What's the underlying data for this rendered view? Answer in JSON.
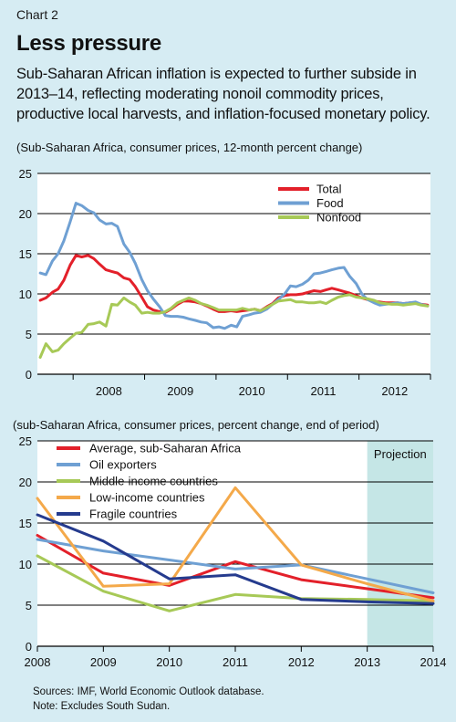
{
  "header": {
    "label": "Chart 2",
    "title": "Less pressure",
    "subtitle": "Sub-Saharan African inflation is expected to further subside in 2013–14, reflecting moderating nonoil commodity prices, productive local harvests, and inflation-focused monetary policy."
  },
  "chart_data": [
    {
      "type": "line",
      "note": "(Sub-Saharan Africa, consumer prices, 12-month percent change)",
      "y_ticks": [
        "0",
        "5",
        "10",
        "15",
        "20",
        "25"
      ],
      "ylim": [
        0,
        25
      ],
      "x_ticks": [
        "2008",
        "2009",
        "2010",
        "2011",
        "2012"
      ],
      "xlim": [
        2007.5,
        2013
      ],
      "grid": "horizontal",
      "legend_position": "top-right",
      "series": [
        {
          "name": "Total",
          "color": "#e3202a",
          "x": [
            2007.54,
            2007.62,
            2007.71,
            2007.79,
            2007.87,
            2007.96,
            2008.04,
            2008.12,
            2008.21,
            2008.29,
            2008.37,
            2008.46,
            2008.54,
            2008.62,
            2008.71,
            2008.79,
            2008.87,
            2008.96,
            2009.04,
            2009.12,
            2009.21,
            2009.29,
            2009.37,
            2009.46,
            2009.54,
            2009.62,
            2009.71,
            2009.79,
            2009.87,
            2009.96,
            2010.04,
            2010.12,
            2010.21,
            2010.29,
            2010.37,
            2010.46,
            2010.54,
            2010.62,
            2010.71,
            2010.79,
            2010.87,
            2010.96,
            2011.04,
            2011.12,
            2011.21,
            2011.29,
            2011.37,
            2011.46,
            2011.54,
            2011.62,
            2011.71,
            2011.79,
            2011.87,
            2011.96,
            2012.04,
            2012.12,
            2012.21,
            2012.29,
            2012.37,
            2012.46,
            2012.54,
            2012.62,
            2012.71,
            2012.79,
            2012.87,
            2012.96
          ],
          "y": [
            9.2,
            9.5,
            10.2,
            10.6,
            11.7,
            13.6,
            14.8,
            14.6,
            14.8,
            14.4,
            13.7,
            13.0,
            12.8,
            12.6,
            12.0,
            11.8,
            10.9,
            9.6,
            8.4,
            8.0,
            7.8,
            7.7,
            8.1,
            8.7,
            9.1,
            9.1,
            9.0,
            8.8,
            8.5,
            8.1,
            7.8,
            7.8,
            7.9,
            7.8,
            7.9,
            8.0,
            8.1,
            7.9,
            8.4,
            8.8,
            9.5,
            9.8,
            9.9,
            9.9,
            10.0,
            10.2,
            10.4,
            10.3,
            10.5,
            10.7,
            10.5,
            10.3,
            10.1,
            9.8,
            9.5,
            9.3,
            9.1,
            9.0,
            8.9,
            8.9,
            8.9,
            8.8,
            8.9,
            8.9,
            8.7,
            8.6
          ]
        },
        {
          "name": "Food",
          "color": "#6fa0d3",
          "x": [
            2007.54,
            2007.62,
            2007.71,
            2007.79,
            2007.87,
            2007.96,
            2008.04,
            2008.12,
            2008.21,
            2008.29,
            2008.37,
            2008.46,
            2008.54,
            2008.62,
            2008.71,
            2008.79,
            2008.87,
            2008.96,
            2009.04,
            2009.12,
            2009.21,
            2009.29,
            2009.37,
            2009.46,
            2009.54,
            2009.62,
            2009.71,
            2009.79,
            2009.87,
            2009.96,
            2010.04,
            2010.12,
            2010.21,
            2010.29,
            2010.37,
            2010.46,
            2010.54,
            2010.62,
            2010.71,
            2010.79,
            2010.87,
            2010.96,
            2011.04,
            2011.12,
            2011.21,
            2011.29,
            2011.37,
            2011.46,
            2011.54,
            2011.62,
            2011.71,
            2011.79,
            2011.87,
            2011.96,
            2012.04,
            2012.12,
            2012.21,
            2012.29,
            2012.37,
            2012.46,
            2012.54,
            2012.62,
            2012.71,
            2012.79,
            2012.87,
            2012.96
          ],
          "y": [
            12.6,
            12.4,
            14.1,
            15.0,
            16.6,
            19.0,
            21.3,
            21.0,
            20.4,
            20.1,
            19.2,
            18.7,
            18.8,
            18.4,
            16.2,
            15.2,
            13.8,
            11.8,
            10.4,
            9.4,
            8.4,
            7.3,
            7.2,
            7.2,
            7.1,
            6.9,
            6.7,
            6.5,
            6.4,
            5.8,
            5.9,
            5.7,
            6.1,
            5.9,
            7.2,
            7.4,
            7.6,
            7.7,
            8.1,
            8.7,
            9.3,
            10.0,
            11.0,
            10.9,
            11.2,
            11.7,
            12.5,
            12.6,
            12.8,
            13.0,
            13.2,
            13.3,
            12.2,
            11.3,
            10.0,
            9.3,
            8.9,
            8.6,
            8.7,
            8.8,
            8.9,
            8.8,
            8.9,
            9.0,
            8.7,
            8.5
          ]
        },
        {
          "name": "Nonfood",
          "color": "#a7c957",
          "x": [
            2007.54,
            2007.62,
            2007.71,
            2007.79,
            2007.87,
            2007.96,
            2008.04,
            2008.12,
            2008.21,
            2008.29,
            2008.37,
            2008.46,
            2008.54,
            2008.62,
            2008.71,
            2008.79,
            2008.87,
            2008.96,
            2009.04,
            2009.12,
            2009.21,
            2009.29,
            2009.37,
            2009.46,
            2009.54,
            2009.62,
            2009.71,
            2009.79,
            2009.87,
            2009.96,
            2010.04,
            2010.12,
            2010.21,
            2010.29,
            2010.37,
            2010.46,
            2010.54,
            2010.62,
            2010.71,
            2010.79,
            2010.87,
            2010.96,
            2011.04,
            2011.12,
            2011.21,
            2011.29,
            2011.37,
            2011.46,
            2011.54,
            2011.62,
            2011.71,
            2011.79,
            2011.87,
            2011.96,
            2012.04,
            2012.12,
            2012.21,
            2012.29,
            2012.37,
            2012.46,
            2012.54,
            2012.62,
            2012.71,
            2012.79,
            2012.87,
            2012.96
          ],
          "y": [
            2.1,
            3.8,
            2.8,
            3.0,
            3.8,
            4.5,
            5.1,
            5.2,
            6.2,
            6.3,
            6.5,
            6.0,
            8.7,
            8.6,
            9.5,
            9.0,
            8.6,
            7.6,
            7.7,
            7.6,
            7.6,
            7.8,
            8.2,
            8.9,
            9.2,
            9.5,
            9.2,
            8.8,
            8.6,
            8.3,
            8.0,
            8.0,
            8.0,
            8.0,
            8.2,
            8.0,
            8.1,
            7.9,
            8.3,
            8.7,
            9.1,
            9.2,
            9.3,
            9.0,
            9.0,
            8.9,
            8.9,
            9.0,
            8.8,
            9.2,
            9.6,
            9.8,
            9.9,
            9.6,
            9.5,
            9.4,
            9.2,
            8.9,
            8.8,
            8.7,
            8.7,
            8.6,
            8.7,
            8.8,
            8.6,
            8.5
          ]
        }
      ]
    },
    {
      "type": "line",
      "note": "(sub-Saharan Africa, consumer prices, percent change, end of period)",
      "y_ticks": [
        "0",
        "5",
        "10",
        "15",
        "20",
        "25"
      ],
      "ylim": [
        0,
        25
      ],
      "categories": [
        "2008",
        "2009",
        "2010",
        "2011",
        "2012",
        "2013",
        "2014"
      ],
      "shaded_region": {
        "label": "Projection",
        "from": "2013",
        "to": "2014",
        "color": "#c5e6e6"
      },
      "grid": "horizontal",
      "legend_position": "top-left",
      "series": [
        {
          "name": "Average, sub-Saharan Africa",
          "color": "#e3202a",
          "values": [
            13.5,
            8.9,
            7.4,
            10.3,
            8.1,
            7.0,
            5.9
          ]
        },
        {
          "name": "Oil exporters",
          "color": "#6fa0d3",
          "values": [
            13.0,
            11.6,
            10.5,
            9.4,
            9.9,
            8.2,
            6.5
          ]
        },
        {
          "name": "Middle-income countries",
          "color": "#a7c957",
          "values": [
            11.0,
            6.7,
            4.3,
            6.3,
            5.8,
            5.7,
            5.5
          ]
        },
        {
          "name": "Low-income countries",
          "color": "#f4a94a",
          "values": [
            18.0,
            7.3,
            7.6,
            19.3,
            9.9,
            7.6,
            5.5
          ]
        },
        {
          "name": "Fragile countries",
          "color": "#253b8e",
          "values": [
            16.0,
            12.8,
            8.2,
            8.7,
            5.7,
            5.4,
            5.2
          ]
        }
      ]
    }
  ],
  "footer": {
    "sources": "Sources: IMF, World Economic Outlook database.",
    "note": "Note: Excludes South Sudan."
  }
}
